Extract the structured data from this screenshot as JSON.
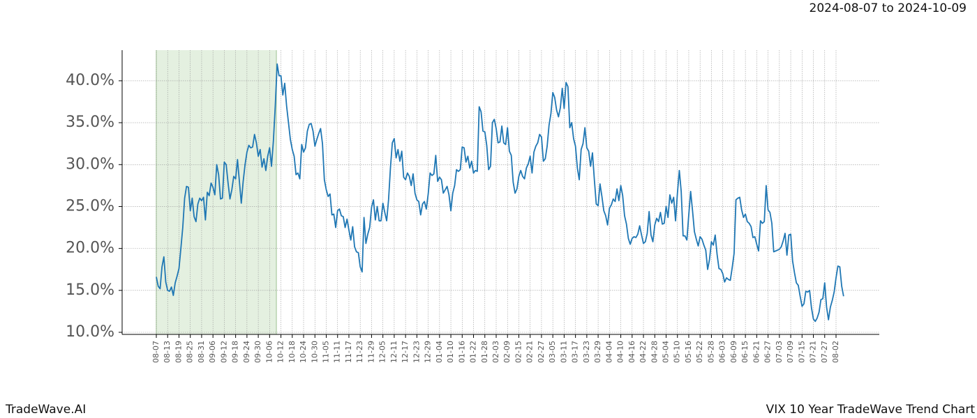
{
  "chart_data": {
    "type": "line",
    "title": "VIX 10 Year TradeWave Trend Chart",
    "date_range": "2024-08-07 to 2024-10-09",
    "watermark": "TradeWave.AI",
    "color": "#1f77b4",
    "grid": true,
    "ylim": [
      9.75,
      43.65
    ],
    "yticks": [
      {
        "value": 10,
        "label": "10.0%"
      },
      {
        "value": 15,
        "label": "15.0%"
      },
      {
        "value": 20,
        "label": "20.0%"
      },
      {
        "value": 25,
        "label": "25.0%"
      },
      {
        "value": 30,
        "label": "30.0%"
      },
      {
        "value": 35,
        "label": "35.0%"
      },
      {
        "value": 40,
        "label": "40.0%"
      }
    ],
    "categories": [
      "08-07",
      null,
      null,
      null,
      null,
      null,
      "08-13",
      null,
      null,
      null,
      null,
      null,
      "08-19",
      null,
      null,
      null,
      null,
      null,
      "08-25",
      null,
      null,
      null,
      null,
      null,
      "08-31",
      null,
      null,
      null,
      null,
      null,
      "09-06",
      null,
      null,
      null,
      null,
      null,
      "09-12",
      null,
      null,
      null,
      null,
      null,
      "09-18",
      null,
      null,
      null,
      null,
      null,
      "09-24",
      null,
      null,
      null,
      null,
      null,
      "09-30",
      null,
      null,
      null,
      null,
      null,
      "10-06",
      null,
      null,
      null,
      null,
      null,
      "10-12",
      null,
      null,
      null,
      null,
      null,
      "10-18",
      null,
      null,
      null,
      null,
      null,
      "10-24",
      null,
      null,
      null,
      null,
      null,
      "10-30",
      null,
      null,
      null,
      null,
      null,
      "11-05",
      null,
      null,
      null,
      null,
      null,
      "11-11",
      null,
      null,
      null,
      null,
      null,
      "11-17",
      null,
      null,
      null,
      null,
      null,
      "11-23",
      null,
      null,
      null,
      null,
      null,
      "11-29",
      null,
      null,
      null,
      null,
      null,
      "12-05",
      null,
      null,
      null,
      null,
      null,
      "12-11",
      null,
      null,
      null,
      null,
      null,
      "12-17",
      null,
      null,
      null,
      null,
      null,
      "12-23",
      null,
      null,
      null,
      null,
      null,
      "12-29",
      null,
      null,
      null,
      null,
      null,
      "01-04",
      null,
      null,
      null,
      null,
      null,
      "01-10",
      null,
      null,
      null,
      null,
      null,
      "01-16",
      null,
      null,
      null,
      null,
      null,
      "01-22",
      null,
      null,
      null,
      null,
      null,
      "01-28",
      null,
      null,
      null,
      null,
      null,
      "02-03",
      null,
      null,
      null,
      null,
      null,
      "02-09",
      null,
      null,
      null,
      null,
      null,
      "02-15",
      null,
      null,
      null,
      null,
      null,
      "02-21",
      null,
      null,
      null,
      null,
      null,
      "02-27",
      null,
      null,
      null,
      null,
      null,
      "03-05",
      null,
      null,
      null,
      null,
      null,
      "03-11",
      null,
      null,
      null,
      null,
      null,
      "03-17",
      null,
      null,
      null,
      null,
      null,
      "03-23",
      null,
      null,
      null,
      null,
      null,
      "03-29",
      null,
      null,
      null,
      null,
      null,
      "04-04",
      null,
      null,
      null,
      null,
      null,
      "04-10",
      null,
      null,
      null,
      null,
      null,
      "04-16",
      null,
      null,
      null,
      null,
      null,
      "04-22",
      null,
      null,
      null,
      null,
      null,
      "04-28",
      null,
      null,
      null,
      null,
      null,
      "05-04",
      null,
      null,
      null,
      null,
      null,
      "05-10",
      null,
      null,
      null,
      null,
      null,
      "05-16",
      null,
      null,
      null,
      null,
      null,
      "05-22",
      null,
      null,
      null,
      null,
      null,
      "05-28",
      null,
      null,
      null,
      null,
      null,
      "06-03",
      null,
      null,
      null,
      null,
      null,
      "06-09",
      null,
      null,
      null,
      null,
      null,
      "06-15",
      null,
      null,
      null,
      null,
      null,
      "06-21",
      null,
      null,
      null,
      null,
      null,
      "06-27",
      null,
      null,
      null,
      null,
      null,
      "07-03",
      null,
      null,
      null,
      null,
      null,
      "07-09",
      null,
      null,
      null,
      null,
      null,
      "07-15",
      null,
      null,
      null,
      null,
      null,
      "07-21",
      null,
      null,
      null,
      null,
      null,
      "07-27",
      null,
      null,
      null,
      null,
      null,
      "08-02",
      null,
      null,
      null,
      null
    ],
    "values": [
      16.6,
      15.5,
      15.2,
      17.8,
      19.0,
      16.0,
      15.0,
      14.9,
      15.4,
      14.4,
      15.9,
      16.7,
      17.6,
      20.0,
      22.5,
      26.0,
      27.4,
      27.3,
      24.5,
      26.0,
      23.8,
      23.2,
      25.3,
      26.0,
      25.7,
      26.1,
      23.4,
      26.7,
      26.3,
      27.8,
      27.3,
      26.4,
      30.0,
      28.8,
      25.9,
      26.0,
      30.3,
      30.0,
      27.8,
      25.9,
      27.0,
      28.6,
      28.3,
      30.6,
      28.0,
      25.4,
      28.0,
      30.0,
      31.5,
      32.3,
      32.0,
      32.1,
      33.6,
      32.6,
      31.0,
      31.8,
      29.7,
      30.7,
      29.3,
      31.0,
      32.0,
      29.8,
      32.8,
      37.0,
      42.0,
      40.6,
      40.6,
      38.3,
      39.7,
      37.0,
      35.0,
      33.0,
      31.8,
      31.0,
      28.8,
      29.0,
      28.3,
      32.4,
      31.5,
      32.0,
      34.0,
      34.8,
      34.9,
      34.0,
      32.2,
      33.0,
      33.7,
      34.3,
      32.5,
      28.2,
      27.0,
      26.2,
      26.5,
      24.0,
      24.1,
      22.5,
      24.5,
      24.7,
      23.9,
      23.8,
      22.5,
      23.5,
      22.2,
      21.0,
      22.6,
      20.2,
      19.6,
      19.5,
      17.8,
      17.2,
      23.7,
      20.6,
      21.7,
      22.5,
      24.9,
      25.8,
      23.4,
      25.0,
      23.3,
      23.3,
      25.4,
      24.3,
      23.3,
      25.8,
      29.6,
      32.6,
      33.1,
      30.8,
      31.8,
      30.4,
      31.6,
      28.5,
      28.2,
      29.0,
      28.6,
      27.5,
      28.9,
      26.6,
      25.8,
      25.6,
      24.0,
      25.3,
      25.6,
      24.7,
      26.5,
      29.0,
      28.7,
      28.9,
      31.1,
      28.0,
      28.5,
      28.2,
      26.6,
      27.0,
      27.4,
      26.4,
      24.5,
      26.6,
      27.5,
      29.4,
      29.2,
      29.4,
      32.1,
      32.0,
      30.3,
      31.0,
      29.6,
      30.4,
      29.0,
      29.3,
      29.2,
      36.9,
      36.3,
      34.0,
      33.9,
      32.3,
      29.4,
      29.8,
      35.0,
      35.4,
      34.3,
      32.6,
      32.7,
      34.6,
      32.6,
      32.4,
      34.4,
      31.6,
      31.1,
      27.9,
      26.6,
      27.1,
      28.6,
      29.3,
      28.6,
      28.3,
      29.6,
      30.1,
      31.0,
      29.0,
      31.5,
      32.2,
      32.6,
      33.6,
      33.3,
      30.4,
      30.7,
      32.2,
      34.7,
      36.1,
      38.6,
      38.0,
      36.5,
      35.7,
      36.8,
      39.1,
      36.7,
      39.8,
      39.3,
      34.4,
      35.0,
      33.1,
      32.2,
      29.6,
      28.2,
      31.8,
      32.5,
      34.4,
      32.0,
      31.6,
      29.8,
      31.4,
      28.2,
      25.3,
      25.1,
      27.7,
      26.2,
      24.5,
      23.9,
      22.8,
      24.8,
      25.2,
      25.9,
      25.6,
      27.1,
      25.7,
      27.5,
      26.3,
      23.9,
      22.9,
      21.2,
      20.5,
      21.2,
      21.4,
      21.3,
      21.7,
      22.7,
      21.6,
      20.6,
      20.8,
      21.8,
      24.4,
      21.6,
      20.8,
      22.8,
      23.6,
      23.2,
      24.3,
      22.9,
      23.0,
      25.0,
      23.7,
      26.4,
      25.4,
      26.1,
      23.3,
      26.6,
      29.3,
      26.8,
      21.5,
      21.5,
      21.0,
      24.0,
      26.8,
      24.5,
      22.0,
      21.1,
      20.3,
      21.4,
      21.1,
      20.4,
      19.8,
      17.5,
      18.7,
      20.8,
      20.4,
      21.6,
      19.3,
      17.6,
      17.5,
      17.0,
      16.0,
      16.5,
      16.3,
      16.2,
      17.7,
      19.4,
      25.8,
      26.0,
      26.1,
      24.6,
      23.7,
      24.1,
      23.2,
      23.0,
      22.6,
      21.3,
      21.4,
      20.5,
      19.7,
      23.3,
      23.0,
      23.2,
      27.5,
      24.6,
      24.3,
      23.0,
      19.6,
      19.7,
      19.8,
      19.9,
      20.2,
      20.9,
      21.8,
      19.2,
      21.6,
      21.7,
      18.5,
      17.1,
      15.9,
      15.6,
      14.3,
      13.1,
      13.4,
      14.9,
      14.8,
      15.0,
      12.9,
      11.6,
      11.3,
      11.7,
      12.4,
      13.9,
      14.0,
      15.9,
      13.0,
      11.5,
      13.0,
      13.8,
      14.8,
      16.5,
      17.9,
      17.8,
      15.5,
      14.3
    ]
  }
}
